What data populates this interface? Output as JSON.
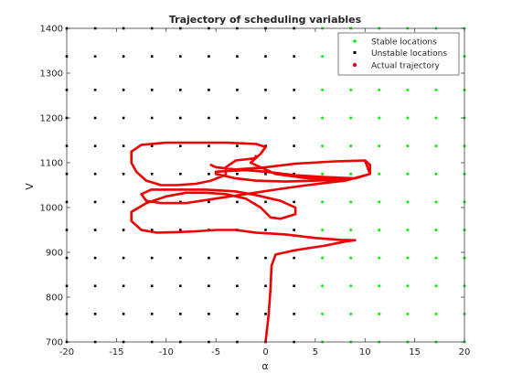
{
  "chart_data": {
    "type": "scatter",
    "title": "Trajectory of scheduling variables",
    "xlabel": "α",
    "ylabel": "V",
    "xlim": [
      -20,
      20
    ],
    "ylim": [
      700,
      1400
    ],
    "xticks": [
      -20,
      -15,
      -10,
      -5,
      0,
      5,
      10,
      15,
      20
    ],
    "yticks": [
      700,
      800,
      900,
      1000,
      1100,
      1200,
      1300,
      1400
    ],
    "grid": false,
    "legend_position": "top-right",
    "grid_points": {
      "alpha": [
        -20,
        -17.14,
        -14.29,
        -11.43,
        -8.57,
        -5.71,
        -2.86,
        0,
        2.86,
        5.71,
        8.57,
        11.43,
        14.29,
        17.14,
        20
      ],
      "V": [
        700,
        762.5,
        825,
        887.5,
        950,
        1012.5,
        1075,
        1137.5,
        1200,
        1262.5,
        1337.5,
        1400
      ],
      "stable_alpha_min": 4
    },
    "series": [
      {
        "name": "Stable locations",
        "color": "#00ee00",
        "marker": "dot"
      },
      {
        "name": "Unstable locations",
        "color": "#000000",
        "marker": "square"
      },
      {
        "name": "Actual trajectory",
        "color": "#ee0000",
        "marker": "line",
        "points": [
          [
            0,
            700
          ],
          [
            0.3,
            760
          ],
          [
            0.5,
            820
          ],
          [
            0.6,
            870
          ],
          [
            1,
            895
          ],
          [
            3,
            905
          ],
          [
            6,
            915
          ],
          [
            8,
            924
          ],
          [
            9,
            927
          ],
          [
            7.5,
            928
          ],
          [
            5,
            932
          ],
          [
            2,
            940
          ],
          [
            -1,
            944
          ],
          [
            -3,
            950
          ],
          [
            -5,
            950
          ],
          [
            -7,
            947
          ],
          [
            -9,
            945
          ],
          [
            -11,
            944
          ],
          [
            -12.5,
            950
          ],
          [
            -13.5,
            970
          ],
          [
            -13.5,
            990
          ],
          [
            -12,
            1010
          ],
          [
            -10,
            1025
          ],
          [
            -8,
            1033
          ],
          [
            -6,
            1033
          ],
          [
            -4,
            1030
          ],
          [
            -2,
            1020
          ],
          [
            -0.5,
            1000
          ],
          [
            0.5,
            978
          ],
          [
            1.5,
            975
          ],
          [
            3,
            985
          ],
          [
            3,
            1000
          ],
          [
            1.5,
            1015
          ],
          [
            -1,
            1028
          ],
          [
            -3,
            1036
          ],
          [
            -6,
            1040
          ],
          [
            -9,
            1040
          ],
          [
            -11.5,
            1040
          ],
          [
            -12.5,
            1030
          ],
          [
            -12,
            1015
          ],
          [
            -10.5,
            1010
          ],
          [
            -8,
            1010
          ],
          [
            -5,
            1020
          ],
          [
            -2,
            1030
          ],
          [
            1,
            1040
          ],
          [
            3.5,
            1048
          ],
          [
            6,
            1055
          ],
          [
            8,
            1060
          ],
          [
            8,
            1062
          ],
          [
            5,
            1060
          ],
          [
            2,
            1058
          ],
          [
            -1,
            1060
          ],
          [
            -3,
            1065
          ],
          [
            -5,
            1075
          ],
          [
            -5,
            1080
          ],
          [
            -2.5,
            1083
          ],
          [
            0,
            1090
          ],
          [
            3,
            1098
          ],
          [
            7,
            1103
          ],
          [
            10,
            1105
          ],
          [
            10.5,
            1095
          ],
          [
            10.5,
            1075
          ],
          [
            9,
            1065
          ],
          [
            6,
            1068
          ],
          [
            3,
            1072
          ],
          [
            0,
            1080
          ],
          [
            -3,
            1085
          ],
          [
            -5,
            1090
          ],
          [
            -5.5,
            1095
          ],
          [
            -5,
            1090
          ],
          [
            -3,
            1085
          ],
          [
            0,
            1090
          ],
          [
            3,
            1098
          ],
          [
            7,
            1103
          ],
          [
            10,
            1105
          ],
          [
            10.5,
            1075
          ],
          [
            8,
            1060
          ],
          [
            4,
            1066
          ],
          [
            1,
            1075
          ],
          [
            -1.5,
            1100
          ],
          [
            -0.5,
            1120
          ],
          [
            0,
            1135
          ],
          [
            -1,
            1142
          ],
          [
            -4,
            1145
          ],
          [
            -7,
            1145
          ],
          [
            -10,
            1145
          ],
          [
            -12.5,
            1140
          ],
          [
            -13.5,
            1125
          ],
          [
            -13.5,
            1100
          ],
          [
            -13,
            1080
          ],
          [
            -12,
            1060
          ],
          [
            -10.5,
            1050
          ],
          [
            -9,
            1050
          ],
          [
            -7,
            1053
          ],
          [
            -5.5,
            1060
          ],
          [
            -4,
            1073
          ],
          [
            -4,
            1090
          ],
          [
            -3,
            1105
          ],
          [
            -1,
            1110
          ],
          [
            -1,
            1115
          ]
        ]
      }
    ]
  }
}
